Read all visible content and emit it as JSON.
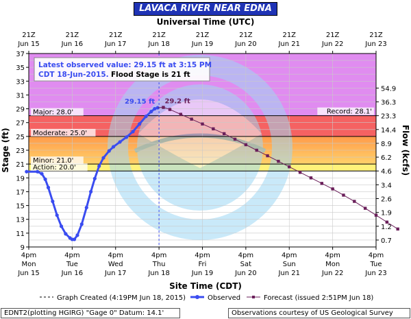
{
  "title": "LAVACA RIVER NEAR EDNA",
  "top_axis_title": "Universal Time (UTC)",
  "bottom_axis_title": "Site Time (CDT)",
  "left_axis_title": "Stage (ft)",
  "right_axis_title": "Flow (kcfs)",
  "info_box": {
    "line1": "Latest observed value: 29.15 ft at 3:15 PM",
    "line2_date": "CDT 18-Jun-2015.",
    "line2_flood": "Flood Stage is 21 ft"
  },
  "top_ticks": [
    {
      "l1": "21Z",
      "l2": "Jun 15"
    },
    {
      "l1": "21Z",
      "l2": "Jun 16"
    },
    {
      "l1": "21Z",
      "l2": "Jun 17"
    },
    {
      "l1": "21Z",
      "l2": "Jun 18"
    },
    {
      "l1": "21Z",
      "l2": "Jun 19"
    },
    {
      "l1": "21Z",
      "l2": "Jun 20"
    },
    {
      "l1": "21Z",
      "l2": "Jun 21"
    },
    {
      "l1": "21Z",
      "l2": "Jun 22"
    },
    {
      "l1": "21Z",
      "l2": "Jun 23"
    }
  ],
  "bottom_ticks": [
    {
      "l1": "4pm",
      "l2": "Mon",
      "l3": "Jun 15"
    },
    {
      "l1": "4pm",
      "l2": "Tue",
      "l3": "Jun 16"
    },
    {
      "l1": "4pm",
      "l2": "Wed",
      "l3": "Jun 17"
    },
    {
      "l1": "4pm",
      "l2": "Thu",
      "l3": "Jun 18"
    },
    {
      "l1": "4pm",
      "l2": "Fri",
      "l3": "Jun 19"
    },
    {
      "l1": "4pm",
      "l2": "Sat",
      "l3": "Jun 20"
    },
    {
      "l1": "4pm",
      "l2": "Sun",
      "l3": "Jun 21"
    },
    {
      "l1": "4pm",
      "l2": "Mon",
      "l3": "Jun 22"
    },
    {
      "l1": "4pm",
      "l2": "Tue",
      "l3": "Jun 23"
    }
  ],
  "legend": {
    "created": "Graph Created (4:19PM Jun 18, 2015)",
    "observed": "Observed",
    "forecast": "Forecast (issued 2:51PM Jun 18)"
  },
  "footer": {
    "left": "EDNT2(plotting HGIRG) \"Gage 0\" Datum: 14.1'",
    "right": "Observations courtesy of US Geological Survey"
  },
  "colors": {
    "observed": "#3a4cf0",
    "forecast": "#6a1f5a",
    "major": "#f56262",
    "moderate": "#ff9b4a",
    "minor": "#ffd16a",
    "action": "#fff27a",
    "above_major": "#e08cf0",
    "title_bar": "#1f33b5",
    "noaa_logo": "#9ed8f5"
  },
  "chart_data": {
    "type": "line",
    "ylim": [
      9,
      37
    ],
    "yticks_left": [
      9,
      11,
      13,
      15,
      17,
      19,
      21,
      23,
      25,
      27,
      29,
      31,
      33,
      35,
      37
    ],
    "right_ticks": [
      {
        "stage": 10,
        "label": "0.7"
      },
      {
        "stage": 12,
        "label": "1.2"
      },
      {
        "stage": 14,
        "label": "1.9"
      },
      {
        "stage": 16,
        "label": "2.6"
      },
      {
        "stage": 18,
        "label": "3.4"
      },
      {
        "stage": 20,
        "label": "4.6"
      },
      {
        "stage": 22,
        "label": "6.2"
      },
      {
        "stage": 24,
        "label": "8.9"
      },
      {
        "stage": 26,
        "label": "14.4"
      },
      {
        "stage": 28,
        "label": "23.3"
      },
      {
        "stage": 30,
        "label": "36.3"
      },
      {
        "stage": 32,
        "label": "54.9"
      }
    ],
    "thresholds": [
      {
        "name": "Major",
        "label": "Major: 28.0'",
        "stage": 28.0
      },
      {
        "name": "Moderate",
        "label": "Moderate: 25.0'",
        "stage": 25.0
      },
      {
        "name": "Minor",
        "label": "Minor: 21.0'",
        "stage": 21.0
      },
      {
        "name": "Action",
        "label": "Action: 20.0'",
        "stage": 20.0
      }
    ],
    "record_label": "Record: 28.1'",
    "record_stage": 28.1,
    "graph_created_day": 3.0,
    "observed_label": "29.15 ft",
    "forecast_peak_label": "29.2 ft",
    "observed": {
      "name": "Observed",
      "points": [
        [
          -0.05,
          19.9
        ],
        [
          0.2,
          19.9
        ],
        [
          0.3,
          19.6
        ],
        [
          0.38,
          18.8
        ],
        [
          0.45,
          17.6
        ],
        [
          0.55,
          15.6
        ],
        [
          0.65,
          13.6
        ],
        [
          0.75,
          12.0
        ],
        [
          0.85,
          10.9
        ],
        [
          0.95,
          10.3
        ],
        [
          1.0,
          10.1
        ],
        [
          1.05,
          10.1
        ],
        [
          1.12,
          10.7
        ],
        [
          1.22,
          12.3
        ],
        [
          1.33,
          14.7
        ],
        [
          1.43,
          17.0
        ],
        [
          1.52,
          18.9
        ],
        [
          1.62,
          20.7
        ],
        [
          1.72,
          21.9
        ],
        [
          1.85,
          22.9
        ],
        [
          1.95,
          23.5
        ],
        [
          2.1,
          24.2
        ],
        [
          2.25,
          24.9
        ],
        [
          2.4,
          25.7
        ],
        [
          2.55,
          26.8
        ],
        [
          2.7,
          27.9
        ],
        [
          2.82,
          28.6
        ],
        [
          2.9,
          29.0
        ],
        [
          2.97,
          29.15
        ]
      ]
    },
    "forecast": {
      "name": "Forecast",
      "points": [
        [
          2.97,
          29.15
        ],
        [
          3.1,
          29.2
        ],
        [
          3.25,
          28.9
        ],
        [
          3.5,
          28.2
        ],
        [
          3.75,
          27.5
        ],
        [
          4.0,
          26.8
        ],
        [
          4.25,
          26.1
        ],
        [
          4.5,
          25.4
        ],
        [
          4.75,
          24.6
        ],
        [
          5.0,
          23.8
        ],
        [
          5.25,
          23.0
        ],
        [
          5.5,
          22.2
        ],
        [
          5.75,
          21.4
        ],
        [
          6.0,
          20.6
        ],
        [
          6.25,
          19.8
        ],
        [
          6.5,
          19.0
        ],
        [
          6.75,
          18.2
        ],
        [
          7.0,
          17.4
        ],
        [
          7.25,
          16.5
        ],
        [
          7.5,
          15.6
        ],
        [
          7.75,
          14.6
        ],
        [
          8.0,
          13.6
        ],
        [
          8.25,
          12.6
        ],
        [
          8.5,
          11.6
        ]
      ]
    }
  }
}
